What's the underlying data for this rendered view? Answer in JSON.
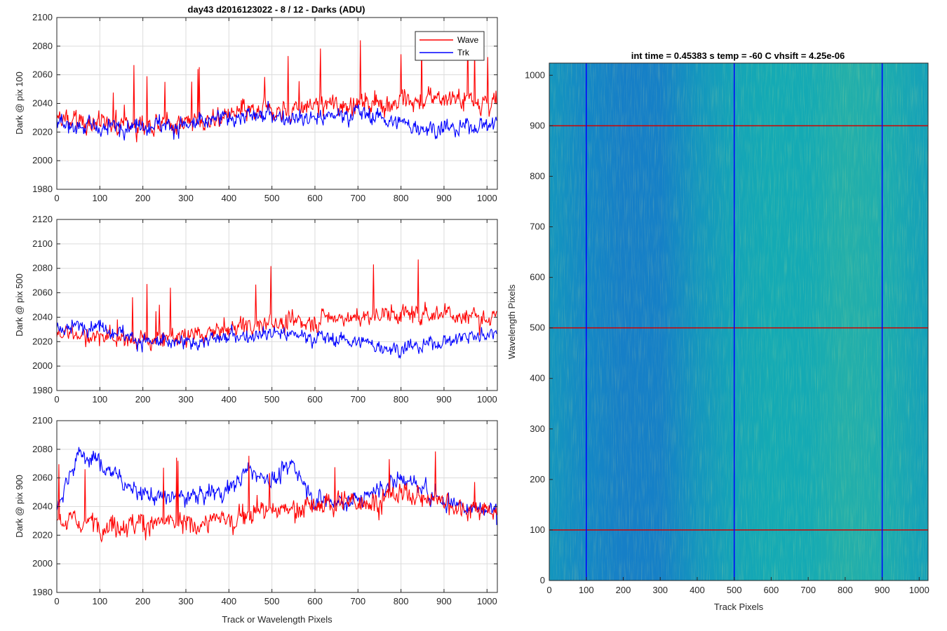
{
  "figure_title": "day43 d2016123022 - 8 / 12 - Darks (ADU)",
  "colors": {
    "wave": "#ff0000",
    "trk": "#0000ff",
    "grid": "#dcdcdc",
    "axis": "#262626"
  },
  "chart_data": [
    {
      "type": "line",
      "title": "day43 d2016123022 - 8 / 12 - Darks (ADU)",
      "xlabel": "",
      "ylabel": "Dark @ pix 100",
      "xlim": [
        0,
        1024
      ],
      "ylim": [
        1980,
        2100
      ],
      "xticks": [
        0,
        100,
        200,
        300,
        400,
        500,
        600,
        700,
        800,
        900,
        1000
      ],
      "yticks": [
        1980,
        2000,
        2020,
        2040,
        2060,
        2080,
        2100
      ],
      "grid": true,
      "legend": "top-right",
      "series": [
        {
          "name": "Wave",
          "color": "#ff0000",
          "x": [
            0,
            100,
            200,
            300,
            400,
            500,
            600,
            700,
            800,
            900,
            1024
          ],
          "values": [
            2028,
            2026,
            2024,
            2026,
            2032,
            2034,
            2038,
            2040,
            2042,
            2044,
            2040
          ]
        },
        {
          "name": "Trk",
          "color": "#0000ff",
          "x": [
            0,
            100,
            200,
            300,
            400,
            500,
            600,
            700,
            800,
            900,
            1024
          ],
          "values": [
            2026,
            2022,
            2026,
            2024,
            2030,
            2032,
            2030,
            2034,
            2026,
            2022,
            2026
          ]
        }
      ]
    },
    {
      "type": "line",
      "xlabel": "",
      "ylabel": "Dark @ pix 500",
      "xlim": [
        0,
        1024
      ],
      "ylim": [
        1980,
        2120
      ],
      "xticks": [
        0,
        100,
        200,
        300,
        400,
        500,
        600,
        700,
        800,
        900,
        1000
      ],
      "yticks": [
        1980,
        2000,
        2020,
        2040,
        2060,
        2080,
        2100,
        2120
      ],
      "grid": true,
      "series": [
        {
          "color": "#ff0000",
          "x": [
            0,
            100,
            200,
            300,
            400,
            500,
            600,
            700,
            800,
            900,
            1024
          ],
          "values": [
            2028,
            2024,
            2022,
            2024,
            2032,
            2036,
            2038,
            2040,
            2042,
            2044,
            2038
          ]
        },
        {
          "color": "#0000ff",
          "x": [
            0,
            100,
            200,
            300,
            400,
            500,
            600,
            700,
            800,
            900,
            1024
          ],
          "values": [
            2030,
            2034,
            2020,
            2018,
            2024,
            2028,
            2024,
            2020,
            2014,
            2020,
            2028
          ]
        }
      ]
    },
    {
      "type": "line",
      "xlabel": "Track or Wavelength Pixels",
      "ylabel": "Dark @ pix 900",
      "xlim": [
        0,
        1024
      ],
      "ylim": [
        1980,
        2100
      ],
      "xticks": [
        0,
        100,
        200,
        300,
        400,
        500,
        600,
        700,
        800,
        900,
        1000
      ],
      "yticks": [
        1980,
        2000,
        2020,
        2040,
        2060,
        2080,
        2100
      ],
      "grid": true,
      "series": [
        {
          "color": "#ff0000",
          "x": [
            0,
            100,
            200,
            300,
            400,
            500,
            600,
            700,
            800,
            900,
            1024
          ],
          "values": [
            2030,
            2028,
            2028,
            2028,
            2032,
            2038,
            2040,
            2044,
            2048,
            2044,
            2036
          ]
        },
        {
          "color": "#0000ff",
          "x": [
            0,
            50,
            100,
            200,
            300,
            400,
            450,
            500,
            550,
            600,
            700,
            800,
            900,
            1024
          ],
          "values": [
            2040,
            2078,
            2070,
            2048,
            2046,
            2052,
            2066,
            2058,
            2070,
            2044,
            2044,
            2060,
            2044,
            2036
          ]
        }
      ]
    },
    {
      "type": "heatmap",
      "title": "int time = 0.45383 s   temp = -60 C   vhsift = 4.25e-06",
      "xlabel": "Track Pixels",
      "ylabel": "Wavelength Pixels",
      "xlim": [
        0,
        1024
      ],
      "ylim": [
        0,
        1024
      ],
      "xticks": [
        0,
        100,
        200,
        300,
        400,
        500,
        600,
        700,
        800,
        900,
        1000
      ],
      "yticks": [
        0,
        100,
        200,
        300,
        400,
        500,
        600,
        700,
        800,
        900,
        1000
      ],
      "colormap": "parula",
      "column_profile": {
        "x": [
          0,
          100,
          200,
          300,
          400,
          500,
          600,
          700,
          800,
          900,
          1024
        ],
        "relative_level": [
          0.45,
          0.38,
          0.32,
          0.33,
          0.45,
          0.52,
          0.55,
          0.55,
          0.6,
          0.58,
          0.5
        ]
      },
      "vertical_markers": [
        100,
        500,
        900
      ],
      "horizontal_markers": [
        100,
        500,
        900
      ]
    }
  ]
}
